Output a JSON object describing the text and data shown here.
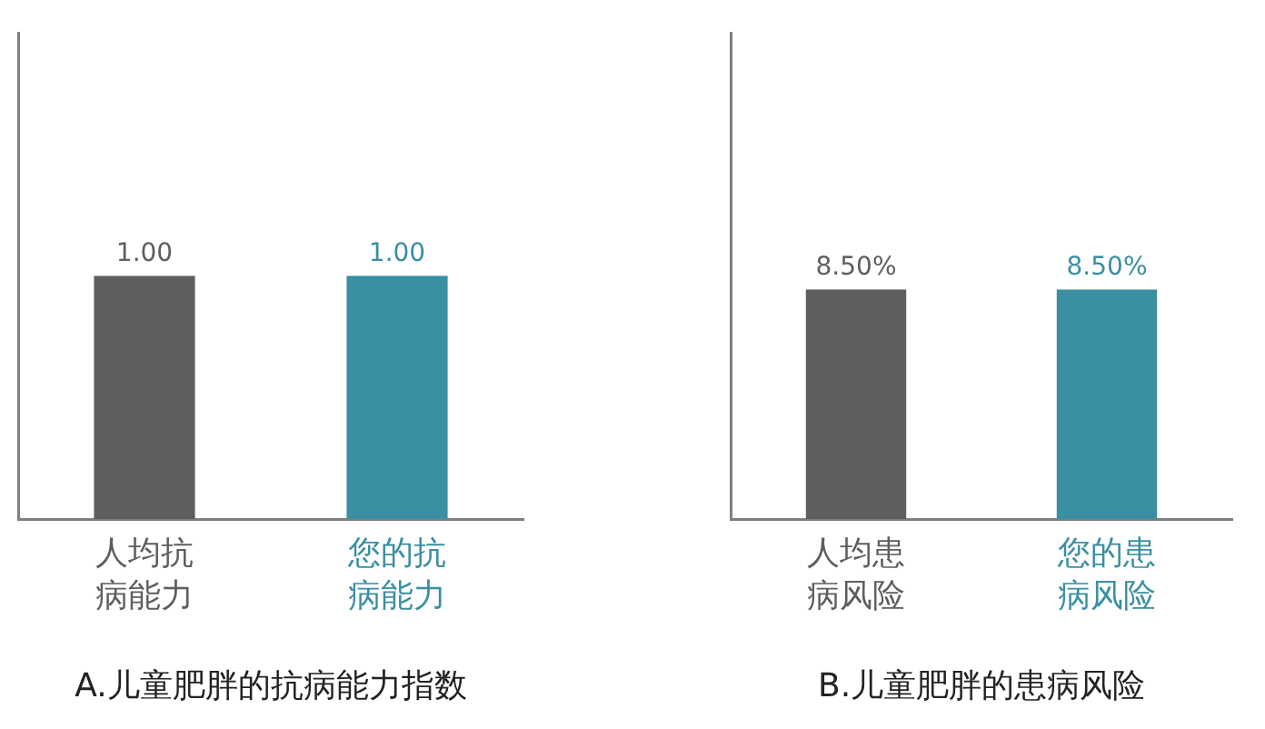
{
  "chart_data": [
    {
      "type": "bar",
      "title": "A.儿童肥胖的抗病能力指数",
      "categories": [
        "人均抗病能力",
        "您的抗病能力"
      ],
      "values": [
        1,
        1
      ],
      "value_labels": [
        "1.00",
        "1.00"
      ],
      "colors": [
        "#5e5e5e",
        "#3a8fa1"
      ],
      "ylim": [
        0,
        2
      ],
      "tick_labels": "x"
    },
    {
      "type": "bar",
      "title": "B.儿童肥胖的患病风险",
      "categories": [
        "人均患病风险",
        "您的患病风险"
      ],
      "values": [
        8.5,
        8.5
      ],
      "value_labels": [
        "8.50%",
        "8.50%"
      ],
      "colors": [
        "#5e5e5e",
        "#3a8fa1"
      ],
      "ylim": [
        0,
        18
      ],
      "tick_labels": "x"
    }
  ]
}
